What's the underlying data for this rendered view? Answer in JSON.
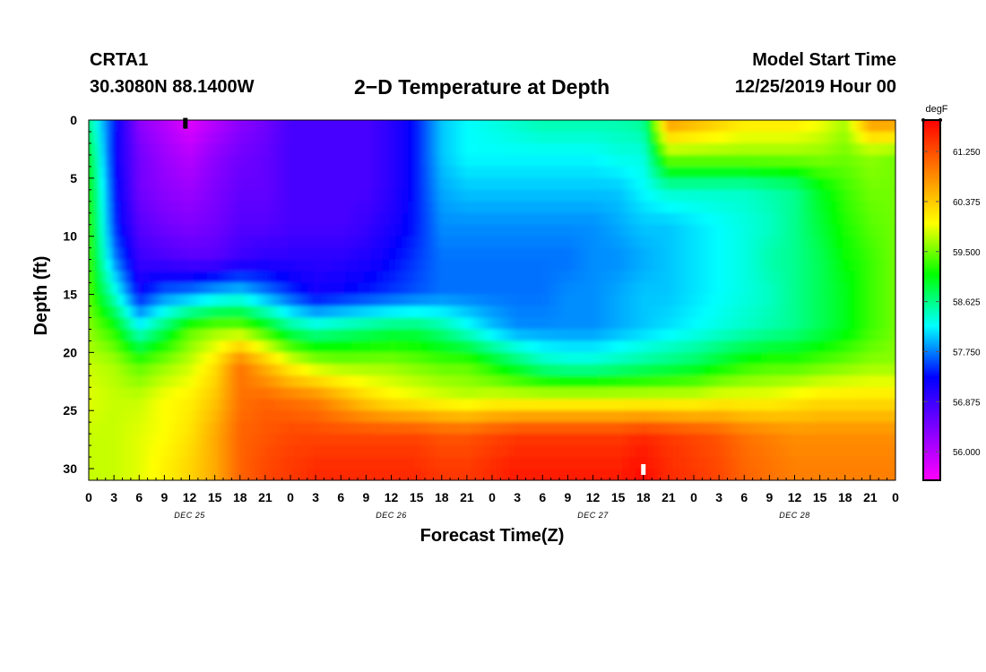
{
  "header": {
    "station": "CRTA1",
    "coords": "30.3080N 88.1400W",
    "title": "2−D Temperature at Depth",
    "model_start_label": "Model Start Time",
    "model_start_value": "12/25/2019 Hour 00"
  },
  "chart_data": {
    "type": "heatmap",
    "title": "2−D Temperature at Depth",
    "xlabel": "Forecast Time(Z)",
    "ylabel": "Depth (ft)",
    "x_tick_labels": [
      "0",
      "3",
      "6",
      "9",
      "12",
      "15",
      "18",
      "21",
      "0",
      "3",
      "6",
      "9",
      "12",
      "15",
      "18",
      "21",
      "0",
      "3",
      "6",
      "9",
      "12",
      "15",
      "18",
      "21",
      "0",
      "3",
      "6",
      "9",
      "12",
      "15",
      "18",
      "21",
      "0"
    ],
    "x_hours": [
      0,
      3,
      6,
      9,
      12,
      15,
      18,
      21,
      24,
      27,
      30,
      33,
      36,
      39,
      42,
      45,
      48,
      51,
      54,
      57,
      60,
      63,
      66,
      69,
      72,
      75,
      78,
      81,
      84,
      87,
      90,
      93,
      96
    ],
    "date_labels": [
      {
        "label": "DEC 25",
        "hour": 12
      },
      {
        "label": "DEC 26",
        "hour": 36
      },
      {
        "label": "DEC 27",
        "hour": 60
      },
      {
        "label": "DEC 28",
        "hour": 84
      }
    ],
    "xlim": [
      0,
      96
    ],
    "ylim": [
      0,
      31
    ],
    "y_ticks": [
      0,
      5,
      10,
      15,
      20,
      25,
      30
    ],
    "y_tick_labels": [
      "0",
      "5",
      "10",
      "15",
      "20",
      "25",
      "30"
    ],
    "colorbar": {
      "unit": "degF",
      "range": [
        55.5,
        61.8
      ],
      "tick_values": [
        56.0,
        56.875,
        57.75,
        58.625,
        59.5,
        60.375,
        61.25
      ],
      "tick_labels": [
        "56.000",
        "56.875",
        "57.750",
        "58.625",
        "59.500",
        "60.375",
        "61.250"
      ],
      "colormap": [
        "#ff00ff",
        "#8000ff",
        "#0000ff",
        "#00ffff",
        "#00ff00",
        "#ffff00",
        "#ff8000",
        "#ff0000"
      ]
    },
    "time_hours": [
      0,
      3,
      6,
      9,
      12,
      15,
      18,
      21,
      24,
      27,
      30,
      33,
      36,
      39,
      42,
      45,
      48,
      51,
      54,
      57,
      60,
      63,
      66,
      69,
      72,
      75,
      78,
      81,
      84,
      87,
      90,
      93,
      96
    ],
    "depths_ft": [
      0,
      3,
      6,
      9,
      12,
      15,
      18,
      21,
      24,
      27,
      30
    ],
    "values_degF": [
      [
        58.6,
        57.4,
        56.3,
        56.0,
        55.7,
        56.0,
        56.3,
        56.5,
        56.8,
        56.8,
        56.8,
        56.8,
        57.0,
        57.4,
        58.0,
        58.2,
        58.3,
        58.4,
        58.5,
        58.5,
        58.5,
        58.5,
        58.6,
        60.8,
        60.6,
        60.4,
        60.2,
        60.2,
        60.2,
        60.0,
        59.7,
        60.8,
        60.8
      ],
      [
        59.0,
        57.3,
        56.5,
        56.2,
        56.0,
        56.3,
        56.5,
        56.6,
        56.8,
        56.8,
        56.8,
        56.8,
        57.0,
        57.4,
        58.0,
        58.2,
        58.2,
        58.2,
        58.2,
        58.2,
        58.2,
        58.3,
        58.3,
        59.6,
        59.6,
        59.6,
        59.6,
        59.6,
        59.6,
        59.6,
        59.5,
        59.6,
        59.5
      ],
      [
        59.2,
        57.4,
        56.5,
        56.3,
        56.2,
        56.4,
        56.6,
        56.6,
        56.8,
        56.8,
        56.8,
        56.8,
        57.0,
        57.4,
        57.9,
        58.0,
        58.0,
        58.0,
        58.0,
        58.0,
        58.0,
        58.0,
        58.2,
        58.4,
        58.4,
        58.4,
        58.4,
        58.5,
        58.6,
        59.0,
        59.3,
        59.5,
        59.5
      ],
      [
        59.3,
        57.5,
        56.7,
        56.5,
        56.4,
        56.5,
        56.7,
        56.7,
        56.8,
        56.8,
        56.8,
        56.9,
        57.1,
        57.4,
        57.8,
        57.8,
        57.8,
        57.8,
        57.8,
        57.8,
        57.8,
        57.9,
        58.0,
        58.0,
        58.1,
        58.2,
        58.3,
        58.4,
        58.6,
        58.9,
        59.2,
        59.4,
        59.5
      ],
      [
        59.3,
        57.8,
        56.9,
        56.8,
        56.7,
        56.7,
        56.9,
        57.0,
        57.0,
        57.0,
        57.0,
        57.1,
        57.3,
        57.5,
        57.7,
        57.7,
        57.7,
        57.7,
        57.7,
        57.7,
        57.8,
        57.8,
        57.9,
        58.0,
        58.1,
        58.2,
        58.3,
        58.5,
        58.6,
        58.8,
        59.1,
        59.3,
        59.5
      ],
      [
        59.4,
        58.4,
        57.3,
        57.7,
        57.8,
        58.0,
        58.1,
        57.8,
        57.5,
        57.2,
        57.3,
        57.4,
        57.5,
        57.6,
        57.7,
        57.7,
        57.7,
        57.7,
        57.7,
        57.8,
        57.8,
        57.9,
        58.0,
        58.0,
        58.1,
        58.2,
        58.3,
        58.4,
        58.6,
        58.8,
        59.0,
        59.3,
        59.5
      ],
      [
        59.6,
        59.2,
        58.3,
        58.8,
        59.4,
        59.6,
        59.6,
        59.2,
        58.7,
        58.5,
        58.6,
        58.7,
        58.8,
        58.8,
        58.6,
        58.3,
        58.0,
        57.8,
        57.8,
        57.8,
        57.8,
        57.9,
        58.0,
        58.1,
        58.2,
        58.3,
        58.4,
        58.5,
        58.6,
        58.8,
        59.0,
        59.3,
        59.5
      ],
      [
        59.8,
        59.7,
        59.4,
        59.6,
        59.8,
        60.2,
        61.0,
        60.5,
        60.0,
        59.7,
        59.6,
        59.6,
        59.6,
        59.5,
        59.4,
        59.4,
        59.1,
        58.8,
        58.5,
        58.4,
        58.4,
        58.5,
        58.6,
        58.7,
        58.8,
        59.0,
        59.2,
        59.3,
        59.3,
        59.4,
        59.5,
        59.6,
        59.6
      ],
      [
        59.9,
        59.8,
        59.8,
        60.0,
        60.1,
        60.4,
        61.0,
        61.1,
        61.0,
        60.9,
        60.6,
        60.3,
        60.1,
        60.0,
        59.9,
        59.8,
        59.9,
        59.9,
        59.9,
        59.9,
        59.9,
        59.9,
        59.9,
        59.9,
        59.9,
        60.0,
        60.0,
        60.0,
        60.1,
        60.2,
        60.2,
        60.2,
        60.2
      ],
      [
        59.8,
        59.8,
        59.9,
        60.0,
        60.2,
        60.6,
        61.1,
        61.2,
        61.3,
        61.3,
        61.3,
        61.3,
        61.3,
        61.3,
        61.2,
        61.2,
        61.3,
        61.4,
        61.4,
        61.4,
        61.4,
        61.4,
        61.5,
        61.4,
        61.3,
        61.2,
        61.0,
        60.9,
        60.8,
        60.8,
        60.8,
        60.8,
        60.8
      ],
      [
        59.8,
        59.8,
        59.9,
        60.1,
        60.3,
        60.6,
        61.1,
        61.3,
        61.4,
        61.5,
        61.5,
        61.5,
        61.5,
        61.5,
        61.4,
        61.4,
        61.5,
        61.6,
        61.6,
        61.6,
        61.6,
        61.6,
        61.7,
        61.5,
        61.4,
        61.3,
        61.1,
        61.0,
        60.9,
        60.9,
        60.9,
        60.9,
        60.9
      ]
    ],
    "markers": [
      {
        "hour": 11.5,
        "depth_ft": 0.2,
        "color": "#000000"
      },
      {
        "hour": 66.0,
        "depth_ft": 30.0,
        "color": "#ffffff"
      }
    ]
  }
}
